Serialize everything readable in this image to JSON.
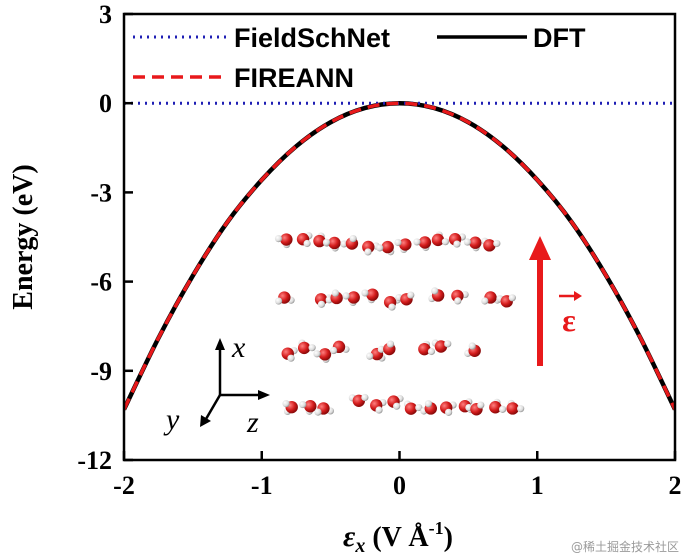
{
  "chart_data": {
    "type": "line",
    "xlabel": "ε_x (V Å^-1)",
    "xlabel_parts": {
      "symbol": "ε",
      "sub": "x",
      "unit_open": " (V Å",
      "exp": "-1",
      "unit_close": ")"
    },
    "ylabel": "Energy (eV)",
    "xlim": [
      -2,
      2
    ],
    "ylim": [
      -12,
      3
    ],
    "xticks": [
      -2,
      -1,
      0,
      1,
      2
    ],
    "yticks": [
      3,
      0,
      -3,
      -6,
      -9,
      -12
    ],
    "xtick_labels": [
      "-2",
      "-1",
      "0",
      "1",
      "2"
    ],
    "ytick_labels": [
      "3",
      "0",
      "-3",
      "-6",
      "-9",
      "-12"
    ],
    "grid": false,
    "legend_position": "top",
    "series": [
      {
        "name": "FieldSchNet",
        "style": "dotted",
        "color": "#1f1fb4",
        "x": [
          -2,
          2
        ],
        "y": [
          0,
          0
        ]
      },
      {
        "name": "DFT",
        "style": "solid",
        "color": "#000000",
        "x": [
          -2.0,
          -1.75,
          -1.5,
          -1.25,
          -1.0,
          -0.75,
          -0.5,
          -0.25,
          0.0,
          0.25,
          0.5,
          0.75,
          1.0,
          1.25,
          1.5,
          1.75,
          2.0
        ],
        "y": [
          -10.3,
          -7.9,
          -5.8,
          -4.0,
          -2.58,
          -1.45,
          -0.64,
          -0.16,
          0.0,
          -0.16,
          -0.64,
          -1.45,
          -2.58,
          -4.0,
          -5.8,
          -7.9,
          -10.3
        ]
      },
      {
        "name": "FIREANN",
        "style": "dashed",
        "color": "#e8191b",
        "x": [
          -2.0,
          -1.75,
          -1.5,
          -1.25,
          -1.0,
          -0.75,
          -0.5,
          -0.25,
          0.0,
          0.25,
          0.5,
          0.75,
          1.0,
          1.25,
          1.5,
          1.75,
          2.0
        ],
        "y": [
          -10.3,
          -7.9,
          -5.8,
          -4.0,
          -2.58,
          -1.45,
          -0.64,
          -0.16,
          0.0,
          -0.16,
          -0.64,
          -1.45,
          -2.58,
          -4.0,
          -5.8,
          -7.9,
          -10.3
        ]
      }
    ],
    "inset": {
      "axis_labels": {
        "x": "x",
        "y": "y",
        "z": "z"
      },
      "field_label": "ε",
      "field_color": "#e8191b",
      "oxygen_color": "#d41c1c",
      "hydrogen_color": "#e6e6e6"
    }
  },
  "watermark": "@稀土掘金技术社区"
}
